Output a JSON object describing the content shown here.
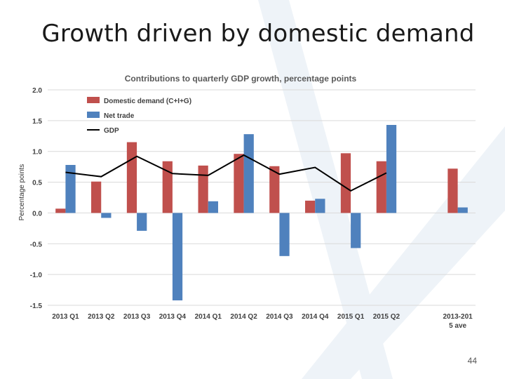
{
  "slide": {
    "title": "Growth driven by domestic demand",
    "page_number": "44",
    "background_mark_color": "#eef3f8"
  },
  "chart_data": {
    "type": "bar",
    "title": "Contributions to quarterly GDP growth, percentage points",
    "ylabel": "Percentage points",
    "xlabel": "",
    "categories": [
      "2013 Q1",
      "2013 Q2",
      "2013 Q3",
      "2013 Q4",
      "2014 Q1",
      "2014 Q2",
      "2014 Q3",
      "2014 Q4",
      "2015 Q1",
      "2015 Q2",
      "",
      "2013-2015 ave"
    ],
    "category_labels": [
      [
        "2013 Q1"
      ],
      [
        "2013 Q2"
      ],
      [
        "2013 Q3"
      ],
      [
        "2013 Q4"
      ],
      [
        "2014 Q1"
      ],
      [
        "2014 Q2"
      ],
      [
        "2014 Q3"
      ],
      [
        "2014 Q4"
      ],
      [
        "2015 Q1"
      ],
      [
        "2015 Q2"
      ],
      [
        ""
      ],
      [
        "2013-201",
        "5 ave"
      ]
    ],
    "ylim": [
      -1.5,
      2.0
    ],
    "yticks": [
      -1.5,
      -1.0,
      -0.5,
      0.0,
      0.5,
      1.0,
      1.5,
      2.0
    ],
    "ytick_labels": [
      "-1.5",
      "-1.0",
      "-0.5",
      "0.0",
      "0.5",
      "1.0",
      "1.5",
      "2.0"
    ],
    "grid": true,
    "legend_position": "top-left",
    "series": [
      {
        "name": "Domestic demand (C+I+G)",
        "kind": "bar",
        "color": "#c0504d",
        "values": [
          0.07,
          0.51,
          1.15,
          0.84,
          0.77,
          0.96,
          0.76,
          0.2,
          0.97,
          0.84,
          null,
          0.72
        ]
      },
      {
        "name": "Net trade",
        "kind": "bar",
        "color": "#4f81bd",
        "values": [
          0.78,
          -0.08,
          -0.29,
          -1.42,
          0.19,
          1.28,
          -0.7,
          0.23,
          -0.57,
          1.43,
          null,
          0.09
        ]
      },
      {
        "name": "GDP",
        "kind": "line",
        "color": "#000000",
        "values": [
          0.66,
          0.59,
          0.92,
          0.64,
          0.61,
          0.94,
          0.63,
          0.74,
          0.36,
          0.65,
          null,
          null
        ]
      }
    ]
  }
}
